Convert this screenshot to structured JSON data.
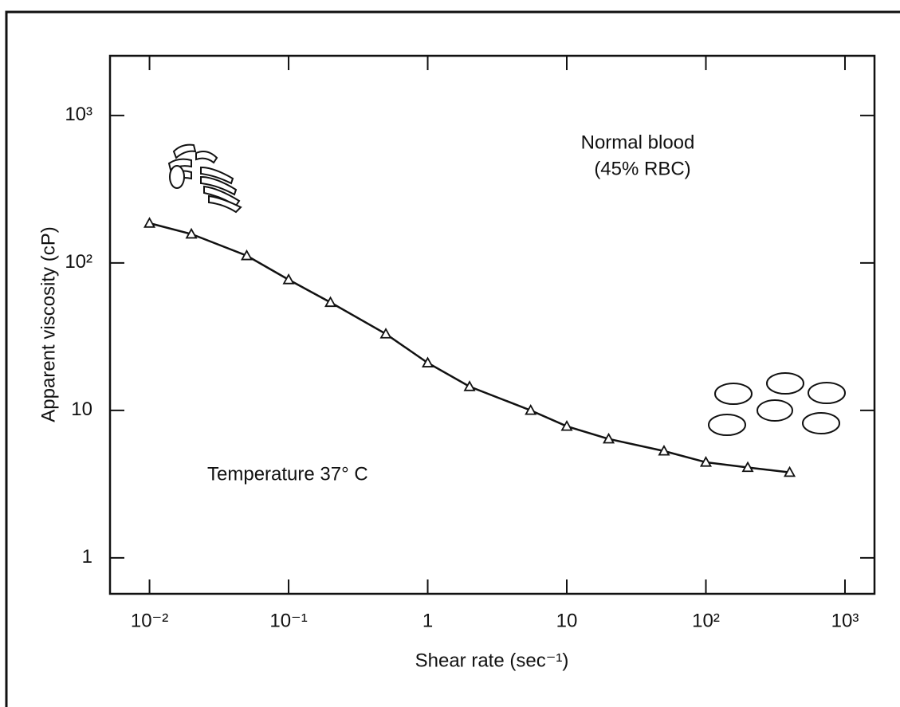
{
  "chart_data": {
    "type": "line",
    "x_label": "Shear rate (sec⁻¹)",
    "y_label": "Apparent viscosity (cP)",
    "annotations": [
      "Normal blood",
      "(45% RBC)",
      "Temperature 37° C"
    ],
    "x": [
      0.01,
      0.02,
      0.05,
      0.1,
      0.2,
      0.5,
      1,
      2,
      5.5,
      10,
      20,
      50,
      100,
      200,
      400
    ],
    "values": [
      186,
      157,
      112,
      77,
      54,
      33,
      21,
      14.5,
      10,
      7.8,
      6.4,
      5.3,
      4.45,
      4.1,
      3.8
    ],
    "color": "#111111",
    "marker": "triangle",
    "log_x": true,
    "log_y": true,
    "xlim": [
      0.0052,
      1630
    ],
    "ylim": [
      0.57,
      2540
    ],
    "xticks": [
      {
        "value": 0.01,
        "label": "10⁻²"
      },
      {
        "value": 0.1,
        "label": "10⁻¹"
      },
      1,
      10,
      {
        "value": 100,
        "label": "10²"
      },
      {
        "value": 1000,
        "label": "10³"
      }
    ],
    "yticks": [
      1,
      10,
      {
        "value": 100,
        "label": "10²"
      },
      {
        "value": 1000,
        "label": "10³"
      }
    ],
    "grid": false
  }
}
